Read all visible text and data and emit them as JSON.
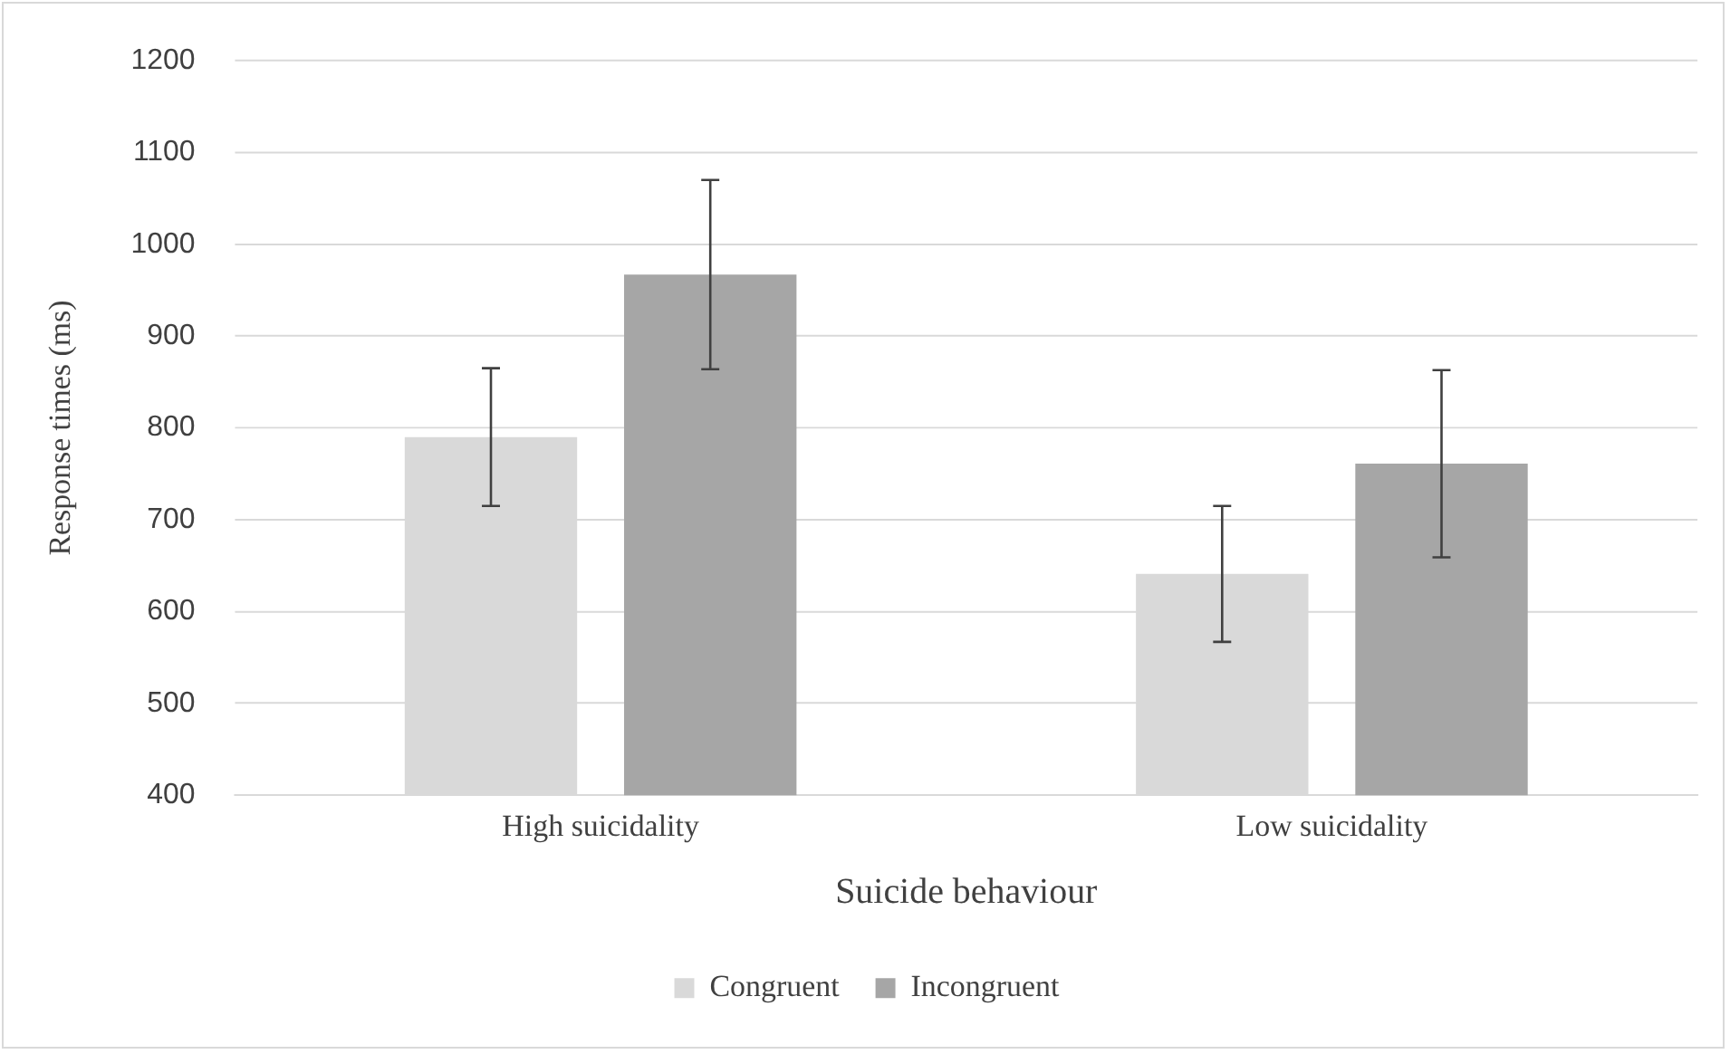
{
  "chart_data": {
    "type": "bar",
    "xlabel": "Suicide behaviour",
    "ylabel": "Response times (ms)",
    "categories": [
      "High suicidality",
      "Low suicidality"
    ],
    "series": [
      {
        "name": "Congruent",
        "color": "#d9d9d9",
        "values": [
          790,
          641
        ],
        "errors": [
          75,
          74
        ]
      },
      {
        "name": "Incongruent",
        "color": "#a6a6a6",
        "values": [
          967,
          761
        ],
        "errors": [
          103,
          102
        ]
      }
    ],
    "ylim": [
      400,
      1200
    ],
    "yticks": [
      400,
      500,
      600,
      700,
      800,
      900,
      1000,
      1100,
      1200
    ],
    "grid": "y",
    "legend": "bottom"
  }
}
